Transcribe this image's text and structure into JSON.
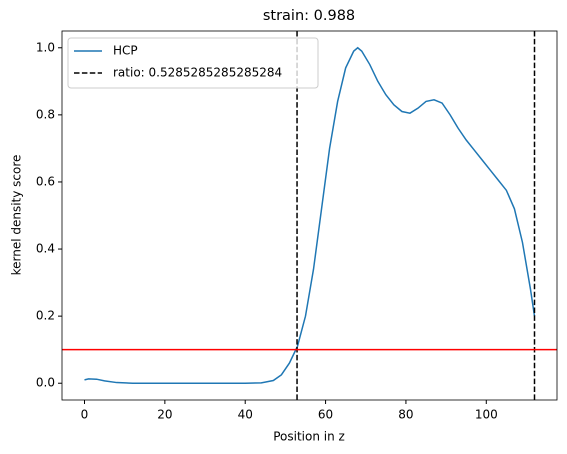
{
  "chart_data": {
    "type": "line",
    "title": "strain: 0.988",
    "xlabel": "Position in z",
    "ylabel": "kernel density score",
    "x": [
      0,
      1,
      3,
      5,
      8,
      12,
      20,
      30,
      40,
      44,
      47,
      49,
      51,
      53,
      55,
      57,
      59,
      61,
      63,
      65,
      67,
      68,
      69,
      71,
      73,
      75,
      77,
      79,
      81,
      83,
      85,
      87,
      89,
      91,
      93,
      95,
      97,
      99,
      101,
      103,
      105,
      107,
      109,
      111,
      112
    ],
    "series": [
      {
        "name": "HCP",
        "color": "#1f77b4",
        "values": [
          0.01,
          0.013,
          0.012,
          0.007,
          0.002,
          0,
          0,
          0,
          0,
          0.001,
          0.008,
          0.025,
          0.06,
          0.11,
          0.2,
          0.34,
          0.52,
          0.7,
          0.84,
          0.94,
          0.99,
          1.0,
          0.99,
          0.95,
          0.9,
          0.86,
          0.83,
          0.81,
          0.805,
          0.82,
          0.84,
          0.845,
          0.835,
          0.8,
          0.76,
          0.725,
          0.695,
          0.665,
          0.635,
          0.605,
          0.575,
          0.52,
          0.42,
          0.28,
          0.2
        ]
      }
    ],
    "vlines": {
      "name": "ratio: 0.5285285285285284",
      "color": "#000000",
      "values": [
        52.9,
        112
      ]
    },
    "hline": {
      "value": 0.1,
      "color": "#ff0000"
    },
    "xlim": [
      -5.6,
      117.6
    ],
    "ylim": [
      -0.05,
      1.05
    ],
    "xticks": [
      0,
      20,
      40,
      60,
      80,
      100
    ],
    "yticks": [
      {
        "value": 0,
        "label": "0.0"
      },
      {
        "value": 0.2,
        "label": "0.2"
      },
      {
        "value": 0.4,
        "label": "0.4"
      },
      {
        "value": 0.6,
        "label": "0.6"
      },
      {
        "value": 0.8,
        "label": "0.8"
      },
      {
        "value": 1,
        "label": "1.0"
      }
    ],
    "legend": "upper left"
  }
}
